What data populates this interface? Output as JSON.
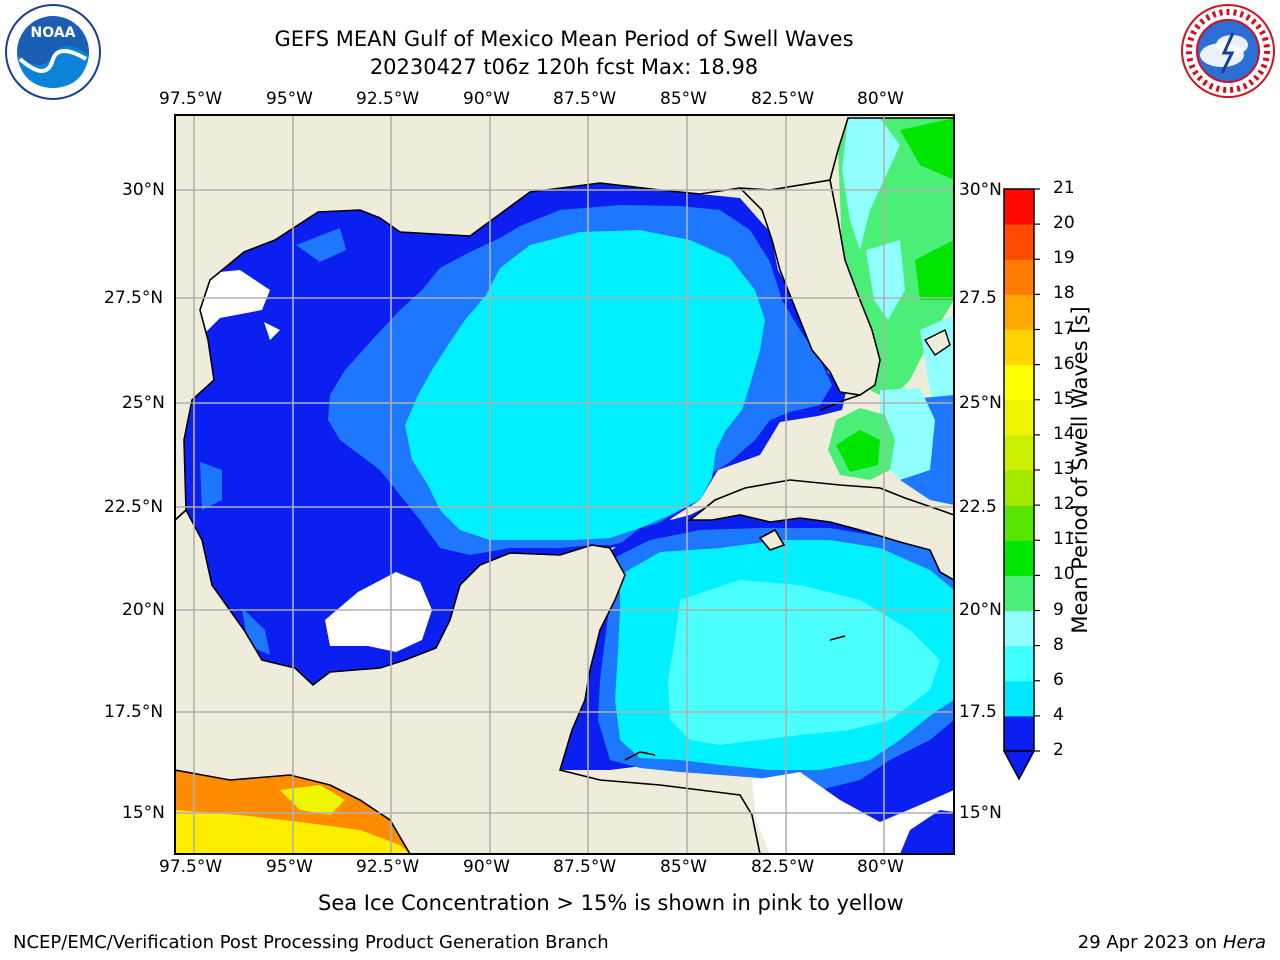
{
  "header": {
    "title_line1": "GEFS MEAN Gulf of Mexico Mean Period of Swell Waves",
    "title_line2": "20230427 t06z 120h fcst   Max: 18.98"
  },
  "logos": {
    "left": "noaa-logo",
    "right": "national-weather-service-logo"
  },
  "map": {
    "lon_ticks": [
      "97.5°W",
      "95°W",
      "92.5°W",
      "90°W",
      "87.5°W",
      "85°W",
      "82.5°W",
      "80°W"
    ],
    "lat_ticks": [
      "30°N",
      "27.5°N",
      "25°N",
      "22.5°N",
      "20°N",
      "17.5°N",
      "15°N"
    ],
    "lat_ticks_right": [
      "30°N",
      "27.5",
      "25°N",
      "22.5",
      "20°N",
      "17.5",
      "15°N"
    ],
    "colors": {
      "land": "#efecdc",
      "period_2_4": "#0a1ff0",
      "period_4_6": "#1e78ff",
      "period_6_8": "#00f0ff",
      "period_8_9": "#4cffff",
      "period_9_10": "#91ffff",
      "period_10_11": "#4bef78",
      "period_11_12": "#00e600",
      "ice_orange": "#ff8c00",
      "ice_yellow": "#ffee00"
    }
  },
  "colorbar": {
    "label": "Mean Period of Swell Waves [s]",
    "ticks": [
      "2",
      "4",
      "6",
      "8",
      "9",
      "10",
      "11",
      "12",
      "13",
      "14",
      "15",
      "16",
      "17",
      "18",
      "19",
      "20",
      "21"
    ],
    "colors": [
      "#0a1ff0",
      "#00e8ff",
      "#40ffff",
      "#91ffff",
      "#4bef78",
      "#00e600",
      "#58e600",
      "#a4ea00",
      "#ccf000",
      "#eef500",
      "#ffff00",
      "#ffd400",
      "#ffa800",
      "#ff7c00",
      "#ff4b00",
      "#ff0a00"
    ]
  },
  "footer": {
    "ice_note": "Sea Ice Concentration > 15% is shown in pink to yellow",
    "credit": "NCEP/EMC/Verification Post Processing Product Generation Branch",
    "date": "29 Apr 2023 on ",
    "host": "Hera"
  }
}
